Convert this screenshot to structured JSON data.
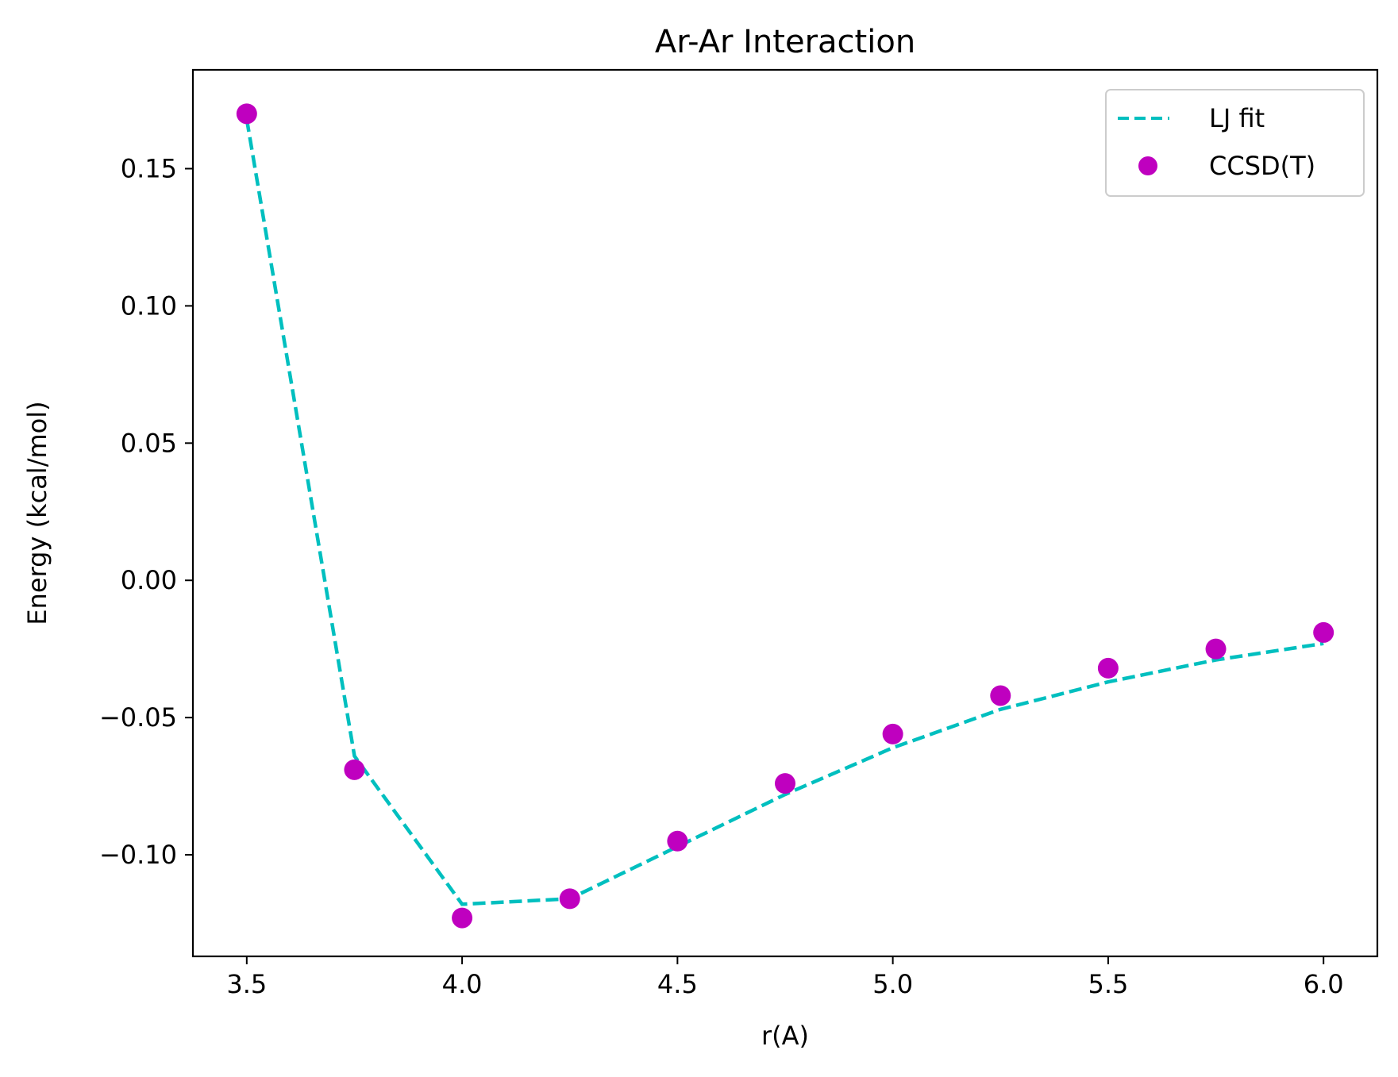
{
  "chart_data": {
    "type": "line",
    "title": "Ar-Ar Interaction",
    "xlabel": "r(A)",
    "ylabel": "Energy (kcal/mol)",
    "xlim": [
      3.375,
      6.125
    ],
    "ylim": [
      -0.137,
      0.186
    ],
    "xticks": [
      3.5,
      4.0,
      4.5,
      5.0,
      5.5,
      6.0
    ],
    "xtick_labels": [
      "3.5",
      "4.0",
      "4.5",
      "5.0",
      "5.5",
      "6.0"
    ],
    "yticks": [
      -0.1,
      -0.05,
      0.0,
      0.05,
      0.1,
      0.15
    ],
    "ytick_labels": [
      "−0.10",
      "−0.05",
      "0.00",
      "0.05",
      "0.10",
      "0.15"
    ],
    "grid": false,
    "legend_position": "top-right",
    "x": [
      3.5,
      3.75,
      4.0,
      4.25,
      4.5,
      4.75,
      5.0,
      5.25,
      5.5,
      5.75,
      6.0
    ],
    "series": [
      {
        "name": "LJ fit",
        "style": "dashed-line",
        "color": "#00bfbf",
        "values": [
          0.168,
          -0.064,
          -0.118,
          -0.116,
          -0.097,
          -0.078,
          -0.061,
          -0.047,
          -0.037,
          -0.029,
          -0.023
        ]
      },
      {
        "name": "CCSD(T)",
        "style": "markers",
        "color": "#bf00bf",
        "values": [
          0.17,
          -0.069,
          -0.123,
          -0.116,
          -0.095,
          -0.074,
          -0.056,
          -0.042,
          -0.032,
          -0.025,
          -0.019
        ]
      }
    ]
  }
}
